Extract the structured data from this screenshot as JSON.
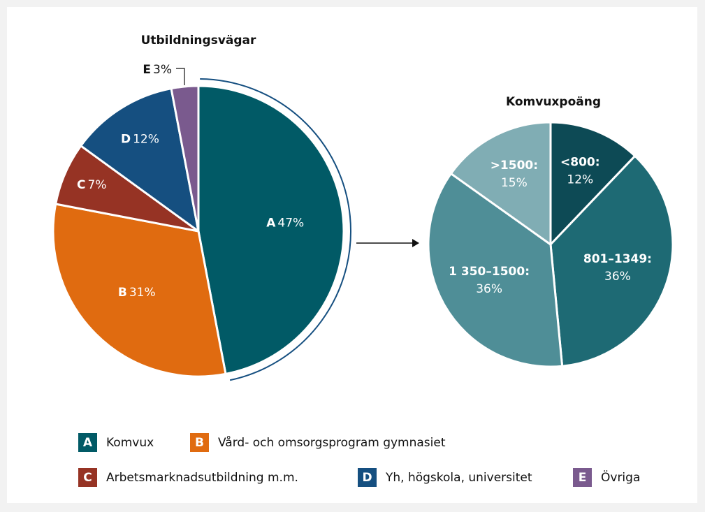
{
  "chart_data": [
    {
      "type": "pie",
      "title": "Utbildningsvägar",
      "categories": [
        "A",
        "B",
        "C",
        "D",
        "E"
      ],
      "category_names": [
        "Komvux",
        "Vård- och omsorgsprogram gymnasiet",
        "Arbetsmarknadsutbildning m.m.",
        "Yh, högskola, universitet",
        "Övriga"
      ],
      "values": [
        47,
        31,
        7,
        12,
        3
      ],
      "value_labels": [
        "47%",
        "31%",
        "7%",
        "12%",
        "3%"
      ],
      "colors": [
        "#015a66",
        "#e06b10",
        "#963324",
        "#154f80",
        "#7a5a8e"
      ]
    },
    {
      "type": "pie",
      "title": "Komvuxpoäng",
      "categories": [
        "<800:",
        "801–1349:",
        "1 350–1500:",
        ">1500:"
      ],
      "values": [
        12,
        36,
        36,
        15
      ],
      "value_labels": [
        "12%",
        "36%",
        "36%",
        "15%"
      ],
      "colors": [
        "#0d4a55",
        "#1e6a74",
        "#4f8e97",
        "#80adb4"
      ]
    }
  ]
}
